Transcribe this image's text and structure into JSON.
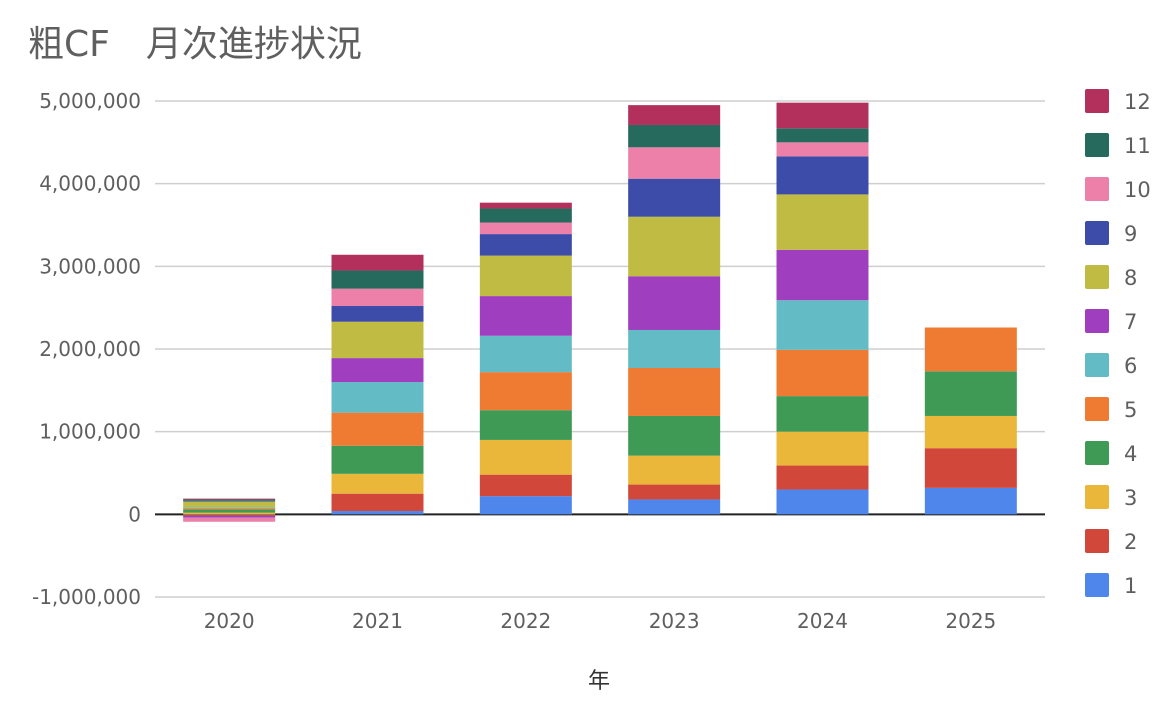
{
  "chart_data": {
    "type": "bar",
    "stacked": true,
    "title": "粗CF　月次進捗状況",
    "xlabel": "年",
    "ylabel": "",
    "categories": [
      "2020",
      "2021",
      "2022",
      "2023",
      "2024",
      "2025"
    ],
    "ylim": [
      -1000000,
      5000000
    ],
    "y_ticks": [
      -1000000,
      0,
      1000000,
      2000000,
      3000000,
      4000000,
      5000000
    ],
    "y_tick_labels": [
      "-1,000,000",
      "0",
      "1,000,000",
      "2,000,000",
      "3,000,000",
      "4,000,000",
      "5,000,000"
    ],
    "grid": true,
    "legend": {
      "position": "right",
      "order": "reverse"
    },
    "series": [
      {
        "name": "1",
        "color": "#4f86ec",
        "values": [
          -5000,
          40000,
          220000,
          180000,
          300000,
          320000
        ]
      },
      {
        "name": "2",
        "color": "#d1483b",
        "values": [
          -15000,
          210000,
          260000,
          180000,
          290000,
          480000
        ]
      },
      {
        "name": "3",
        "color": "#ebb73a",
        "values": [
          20000,
          240000,
          420000,
          350000,
          410000,
          390000
        ]
      },
      {
        "name": "4",
        "color": "#3f9a56",
        "values": [
          40000,
          340000,
          360000,
          480000,
          430000,
          540000
        ]
      },
      {
        "name": "5",
        "color": "#ef7a32",
        "values": [
          15000,
          400000,
          460000,
          580000,
          560000,
          530000
        ]
      },
      {
        "name": "6",
        "color": "#63bcc5",
        "values": [
          10000,
          370000,
          440000,
          460000,
          600000,
          0
        ]
      },
      {
        "name": "7",
        "color": "#9f3fbf",
        "values": [
          -20000,
          290000,
          480000,
          650000,
          610000,
          0
        ]
      },
      {
        "name": "8",
        "color": "#c0bc43",
        "values": [
          70000,
          440000,
          490000,
          720000,
          670000,
          0
        ]
      },
      {
        "name": "9",
        "color": "#3c4ca8",
        "values": [
          10000,
          190000,
          260000,
          460000,
          460000,
          0
        ]
      },
      {
        "name": "10",
        "color": "#ec80a8",
        "values": [
          -50000,
          210000,
          140000,
          380000,
          170000,
          0
        ]
      },
      {
        "name": "11",
        "color": "#266a5d",
        "values": [
          15000,
          220000,
          170000,
          270000,
          170000,
          0
        ]
      },
      {
        "name": "12",
        "color": "#b2305b",
        "values": [
          10000,
          190000,
          70000,
          240000,
          310000,
          0
        ]
      }
    ]
  }
}
